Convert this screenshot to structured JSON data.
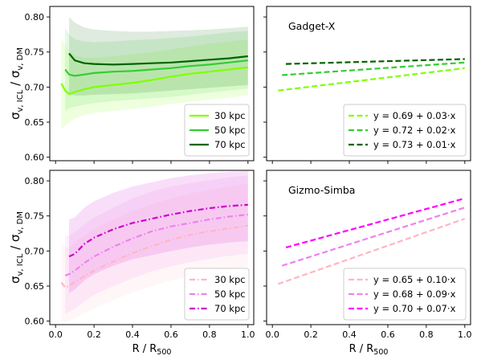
{
  "chart_data": [
    {
      "panel": "top-left",
      "type": "line",
      "xlabel": "",
      "ylabel": "σv,ICL / σv,DM",
      "xlim": [
        -0.03,
        1.03
      ],
      "ylim": [
        0.595,
        0.815
      ],
      "yticks": [
        "0.60",
        "0.65",
        "0.70",
        "0.75",
        "0.80"
      ],
      "xticks": [],
      "legend": "lower-right",
      "series": [
        {
          "name": "30 kpc",
          "color": "#7fff00",
          "dash": "solid",
          "x": [
            0.03,
            0.05,
            0.07,
            0.1,
            0.15,
            0.2,
            0.3,
            0.4,
            0.5,
            0.6,
            0.7,
            0.8,
            0.9,
            1.0
          ],
          "y": [
            0.705,
            0.695,
            0.69,
            0.693,
            0.697,
            0.7,
            0.703,
            0.706,
            0.71,
            0.715,
            0.719,
            0.722,
            0.725,
            0.728
          ],
          "band_lo": [
            0.64,
            0.645,
            0.65,
            0.655,
            0.66,
            0.663,
            0.666,
            0.669,
            0.672,
            0.676,
            0.679,
            0.682,
            0.685,
            0.688
          ],
          "band_hi": [
            0.77,
            0.76,
            0.75,
            0.745,
            0.742,
            0.742,
            0.744,
            0.747,
            0.75,
            0.754,
            0.758,
            0.762,
            0.765,
            0.768
          ]
        },
        {
          "name": "50 kpc",
          "color": "#32cd32",
          "dash": "solid",
          "x": [
            0.05,
            0.07,
            0.1,
            0.15,
            0.2,
            0.3,
            0.4,
            0.5,
            0.6,
            0.7,
            0.8,
            0.9,
            1.0
          ],
          "y": [
            0.725,
            0.718,
            0.716,
            0.718,
            0.72,
            0.722,
            0.723,
            0.725,
            0.727,
            0.73,
            0.732,
            0.735,
            0.738
          ],
          "band_lo": [
            0.665,
            0.67,
            0.672,
            0.675,
            0.677,
            0.68,
            0.682,
            0.684,
            0.686,
            0.689,
            0.692,
            0.695,
            0.698
          ],
          "band_hi": [
            0.785,
            0.775,
            0.768,
            0.765,
            0.764,
            0.765,
            0.767,
            0.768,
            0.77,
            0.772,
            0.775,
            0.778,
            0.78
          ]
        },
        {
          "name": "70 kpc",
          "color": "#006400",
          "dash": "solid",
          "x": [
            0.07,
            0.1,
            0.15,
            0.2,
            0.3,
            0.4,
            0.5,
            0.6,
            0.7,
            0.8,
            0.9,
            1.0
          ],
          "y": [
            0.748,
            0.738,
            0.734,
            0.733,
            0.732,
            0.733,
            0.734,
            0.735,
            0.737,
            0.739,
            0.741,
            0.744
          ],
          "band_lo": [
            0.69,
            0.688,
            0.688,
            0.689,
            0.69,
            0.691,
            0.693,
            0.695,
            0.697,
            0.699,
            0.701,
            0.703
          ],
          "band_hi": [
            0.8,
            0.792,
            0.785,
            0.782,
            0.78,
            0.779,
            0.779,
            0.78,
            0.781,
            0.782,
            0.784,
            0.786
          ]
        }
      ]
    },
    {
      "panel": "top-right",
      "type": "line",
      "title": "Gadget-X",
      "xlim": [
        -0.03,
        1.03
      ],
      "ylim": [
        0.595,
        0.815
      ],
      "xticks": [],
      "yticks": [],
      "legend": "lower-right",
      "series": [
        {
          "name": "y = 0.69 + 0.03·x",
          "color": "#7fff00",
          "dash": "dashed",
          "x": [
            0.03,
            1.0
          ],
          "y": [
            0.695,
            0.727
          ]
        },
        {
          "name": "y = 0.72 + 0.02·x",
          "color": "#32cd32",
          "dash": "dashed",
          "x": [
            0.05,
            1.0
          ],
          "y": [
            0.717,
            0.735
          ]
        },
        {
          "name": "y = 0.73 + 0.01·x",
          "color": "#006400",
          "dash": "dashed",
          "x": [
            0.07,
            1.0
          ],
          "y": [
            0.733,
            0.74
          ]
        }
      ]
    },
    {
      "panel": "bottom-left",
      "type": "line",
      "xlabel": "R / R500",
      "ylabel": "σv,ICL / σv,DM",
      "xlim": [
        -0.03,
        1.03
      ],
      "ylim": [
        0.595,
        0.815
      ],
      "yticks": [
        "0.60",
        "0.65",
        "0.70",
        "0.75",
        "0.80"
      ],
      "xticks": [
        "0.0",
        "0.2",
        "0.4",
        "0.6",
        "0.8",
        "1.0"
      ],
      "legend": "lower-right",
      "series": [
        {
          "name": "30 kpc",
          "color": "#ffb6c1",
          "dash": "dashdot",
          "x": [
            0.03,
            0.05,
            0.07,
            0.1,
            0.15,
            0.2,
            0.3,
            0.4,
            0.5,
            0.6,
            0.7,
            0.8,
            0.9,
            1.0
          ],
          "y": [
            0.655,
            0.648,
            0.65,
            0.656,
            0.664,
            0.672,
            0.685,
            0.697,
            0.707,
            0.716,
            0.723,
            0.728,
            0.732,
            0.736
          ],
          "band_lo": [
            0.598,
            0.598,
            0.6,
            0.604,
            0.611,
            0.618,
            0.63,
            0.641,
            0.65,
            0.658,
            0.664,
            0.669,
            0.673,
            0.677
          ],
          "band_hi": [
            0.715,
            0.705,
            0.705,
            0.712,
            0.722,
            0.731,
            0.745,
            0.757,
            0.767,
            0.775,
            0.782,
            0.787,
            0.792,
            0.796
          ]
        },
        {
          "name": "50 kpc",
          "color": "#ee82ee",
          "dash": "dashdot",
          "x": [
            0.05,
            0.07,
            0.1,
            0.15,
            0.2,
            0.3,
            0.4,
            0.5,
            0.6,
            0.7,
            0.8,
            0.9,
            1.0
          ],
          "y": [
            0.665,
            0.667,
            0.672,
            0.683,
            0.692,
            0.706,
            0.718,
            0.728,
            0.735,
            0.74,
            0.745,
            0.749,
            0.752
          ],
          "band_lo": [
            0.61,
            0.613,
            0.618,
            0.628,
            0.637,
            0.65,
            0.661,
            0.671,
            0.678,
            0.684,
            0.689,
            0.693,
            0.696
          ],
          "band_hi": [
            0.722,
            0.722,
            0.727,
            0.738,
            0.748,
            0.762,
            0.775,
            0.785,
            0.792,
            0.797,
            0.801,
            0.805,
            0.808
          ]
        },
        {
          "name": "70 kpc",
          "color": "#cd00cd",
          "dash": "dashdot",
          "x": [
            0.07,
            0.1,
            0.15,
            0.2,
            0.3,
            0.4,
            0.5,
            0.6,
            0.7,
            0.8,
            0.9,
            1.0
          ],
          "y": [
            0.692,
            0.696,
            0.71,
            0.719,
            0.731,
            0.74,
            0.746,
            0.752,
            0.757,
            0.761,
            0.764,
            0.766
          ],
          "band_lo": [
            0.64,
            0.645,
            0.658,
            0.667,
            0.679,
            0.688,
            0.694,
            0.7,
            0.705,
            0.709,
            0.712,
            0.714
          ],
          "band_hi": [
            0.745,
            0.748,
            0.762,
            0.771,
            0.783,
            0.792,
            0.798,
            0.804,
            0.808,
            0.811,
            0.813,
            0.814
          ]
        }
      ]
    },
    {
      "panel": "bottom-right",
      "type": "line",
      "title": "Gizmo-Simba",
      "xlabel": "R / R500",
      "xlim": [
        -0.03,
        1.03
      ],
      "ylim": [
        0.595,
        0.815
      ],
      "xticks": [
        "0.0",
        "0.2",
        "0.4",
        "0.6",
        "0.8",
        "1.0"
      ],
      "yticks": [],
      "legend": "lower-right",
      "series": [
        {
          "name": "y = 0.65 + 0.10·x",
          "color": "#ffb6c1",
          "dash": "dashed",
          "x": [
            0.03,
            1.0
          ],
          "y": [
            0.653,
            0.746
          ]
        },
        {
          "name": "y = 0.68 + 0.09·x",
          "color": "#ee82ee",
          "dash": "dashed",
          "x": [
            0.05,
            1.0
          ],
          "y": [
            0.679,
            0.762
          ]
        },
        {
          "name": "y = 0.70 + 0.07·x",
          "color": "#ff00ff",
          "dash": "dashed",
          "x": [
            0.07,
            1.0
          ],
          "y": [
            0.705,
            0.775
          ]
        }
      ]
    }
  ]
}
